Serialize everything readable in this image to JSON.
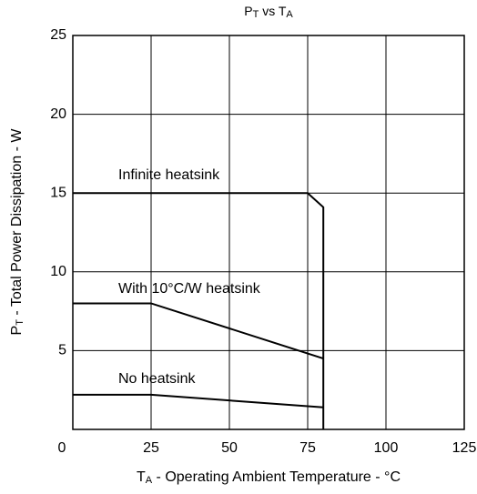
{
  "chart_data": {
    "type": "line",
    "title": [
      {
        "text": "P"
      },
      {
        "text": "T",
        "sub": true
      },
      {
        "text": " vs T"
      },
      {
        "text": "A",
        "sub": true
      }
    ],
    "x_label": [
      {
        "text": "T"
      },
      {
        "text": "A",
        "sub": true
      },
      {
        "text": " - Operating Ambient Temperature - °C"
      }
    ],
    "y_label": [
      {
        "text": "P"
      },
      {
        "text": "T",
        "sub": true
      },
      {
        "text": " - Total Power Dissipation - W"
      }
    ],
    "xlim": [
      0,
      125
    ],
    "ylim": [
      0,
      25
    ],
    "xticks": [
      0,
      25,
      50,
      75,
      100,
      125
    ],
    "yticks": [
      5,
      10,
      15,
      20,
      25
    ],
    "grid": true,
    "series": [
      {
        "name": "Infinite heatsink",
        "color": "#000000",
        "x": [
          0,
          75,
          80,
          80
        ],
        "values": [
          15,
          15,
          14.1,
          0
        ]
      },
      {
        "name": "With 10°C/W heatsink",
        "color": "#000000",
        "x": [
          0,
          25,
          80
        ],
        "values": [
          8,
          8,
          4.5
        ]
      },
      {
        "name": "No heatsink",
        "color": "#000000",
        "x": [
          0,
          25,
          80
        ],
        "values": [
          2.2,
          2.2,
          1.4
        ]
      }
    ]
  }
}
